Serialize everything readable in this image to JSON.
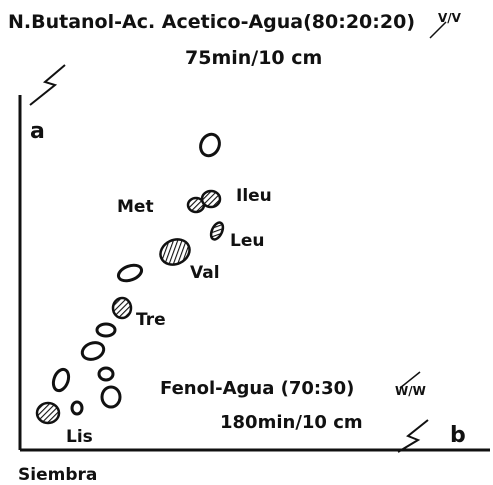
{
  "header": {
    "title": "N.Butanol-Ac. Acetico-Agua(80:20:20)",
    "title_unit": "V/V",
    "subtitle": "75min/10 cm"
  },
  "axes": {
    "vertical": "a",
    "horizontal": "b",
    "origin": "Siembra"
  },
  "second_solvent": {
    "name": "Fenol-Agua (70:30)",
    "unit": "W/W",
    "time": "180min/10 cm"
  },
  "spots": [
    {
      "label": "Met"
    },
    {
      "label": "Ileu"
    },
    {
      "label": "Leu"
    },
    {
      "label": "Val"
    },
    {
      "label": "Tre"
    },
    {
      "label": "Lis"
    }
  ]
}
